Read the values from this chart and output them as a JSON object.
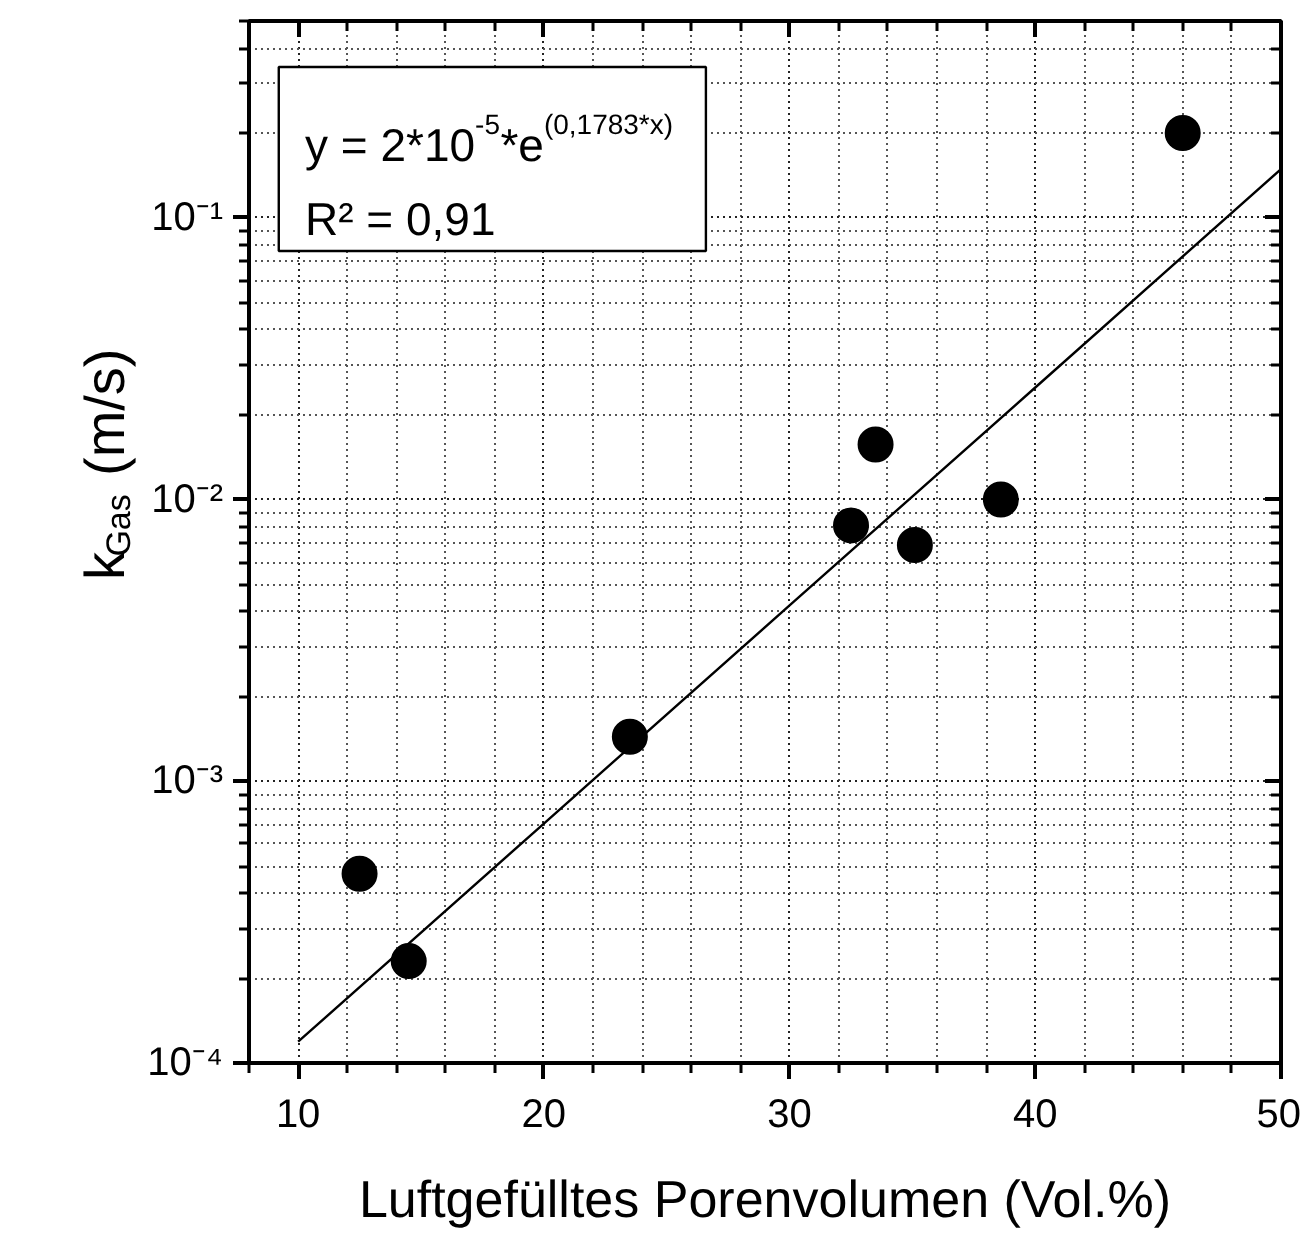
{
  "chart_data": {
    "type": "scatter",
    "xlabel": "Luftgefülltes Porenvolumen (Vol.%)",
    "ylabel": "k$_{Gas}$ (m/s)",
    "annotations": [
      "y = 2*10$^{-5}$*e$^{(0,1783*x)}$",
      "R² = 0,91"
    ],
    "x": [
      12.5,
      14.5,
      23.5,
      32.5,
      33.5,
      35.1,
      38.6,
      46
    ],
    "series": [
      {
        "color": "#000000",
        "marker": "circle",
        "values": [
          0.00047,
          0.00023,
          0.00144,
          0.0081,
          0.0157,
          0.0069,
          0.01,
          0.2
        ]
      },
      {
        "type": "line",
        "color": "#000000",
        "x": [
          10,
          20,
          30,
          40,
          50
        ],
        "values": [
          0.000119,
          0.000708,
          0.00421,
          0.025,
          0.149
        ]
      }
    ],
    "log": "y",
    "xlim": [
      8,
      50
    ],
    "ylim": [
      0.0001,
      0.5
    ],
    "xticks": [
      10,
      20,
      30,
      40,
      50
    ],
    "yticks": [
      {
        "value": 0.0001,
        "label": "10⁻⁴"
      },
      {
        "value": 0.001,
        "label": "10⁻³"
      },
      {
        "value": 0.01,
        "label": "10⁻²"
      },
      {
        "value": 0.1,
        "label": "10⁻¹"
      }
    ],
    "grid": true
  }
}
